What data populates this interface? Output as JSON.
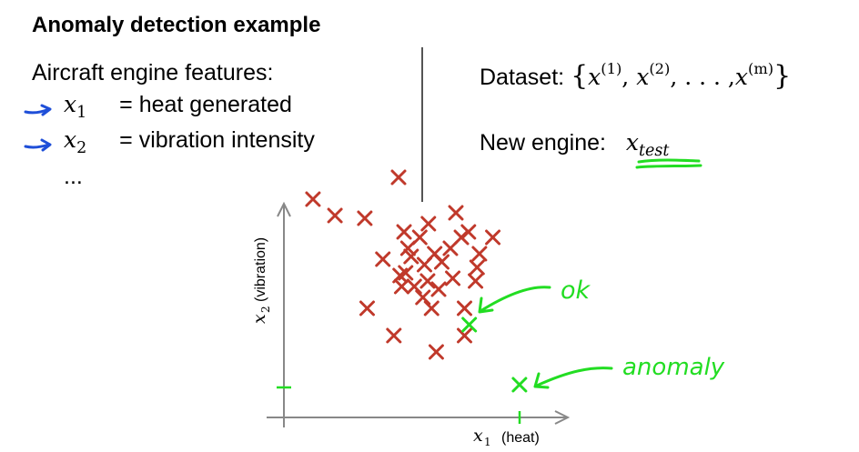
{
  "slide": {
    "title": "Anomaly detection example",
    "features_heading": "Aircraft engine features:",
    "features": [
      {
        "var": "x",
        "sub": "1",
        "desc": "= heat generated"
      },
      {
        "var": "x",
        "sub": "2",
        "desc": "= vibration intensity"
      }
    ],
    "ellipsis": "...",
    "dataset_label": "Dataset:",
    "dataset_formula": {
      "open": "{",
      "var": "x",
      "sup1": "(1)",
      "sup2": "(2)",
      "dots": ", . . . ,",
      "supm": "(m)",
      "close": "}"
    },
    "new_engine_label": "New engine:",
    "new_engine_var": {
      "var": "x",
      "sub": "test"
    }
  },
  "chart_data": {
    "type": "scatter",
    "xlabel": {
      "var": "x",
      "sub": "1",
      "text": "(heat)"
    },
    "ylabel": {
      "var": "x",
      "sub": "2",
      "text": "(vibration)"
    },
    "series": [
      {
        "color": "#c0392b",
        "points": [
          [
            0.37,
            0.8
          ],
          [
            0.65,
            0.74
          ],
          [
            1.03,
            0.73
          ],
          [
            1.46,
            0.88
          ],
          [
            1.48,
            0.52
          ],
          [
            1.4,
            0.3
          ],
          [
            1.66,
            0.48
          ],
          [
            1.94,
            0.24
          ],
          [
            2.3,
            0.3
          ],
          [
            1.06,
            0.4
          ],
          [
            1.53,
            0.68
          ],
          [
            1.73,
            0.66
          ],
          [
            1.92,
            0.6
          ],
          [
            2.26,
            0.66
          ],
          [
            2.66,
            0.66
          ],
          [
            1.26,
            0.58
          ],
          [
            1.5,
            0.48
          ],
          [
            1.55,
            0.53
          ],
          [
            2.01,
            0.57
          ],
          [
            2.44,
            0.5
          ],
          [
            1.97,
            0.47
          ],
          [
            2.15,
            0.51
          ],
          [
            2.49,
            0.6
          ],
          [
            1.58,
            0.62
          ],
          [
            1.77,
            0.44
          ],
          [
            1.83,
            0.5
          ],
          [
            2.12,
            0.62
          ],
          [
            2.35,
            0.68
          ],
          [
            2.46,
            0.55
          ],
          [
            1.84,
            0.71
          ],
          [
            2.19,
            0.75
          ],
          [
            1.62,
            0.59
          ],
          [
            2.3,
            0.4
          ],
          [
            1.79,
            0.56
          ],
          [
            1.88,
            0.4
          ]
        ]
      },
      {
        "color": "#22dd22",
        "points": [
          [
            2.36,
            0.34
          ],
          [
            3.0,
            0.12
          ]
        ]
      }
    ],
    "annotations": [
      "ok",
      "anomaly"
    ]
  },
  "colors": {
    "accent_blue": "#1f4fd8",
    "highlight_green": "#22dd22",
    "marker_red": "#c0392b",
    "axis_gray": "#888888"
  }
}
